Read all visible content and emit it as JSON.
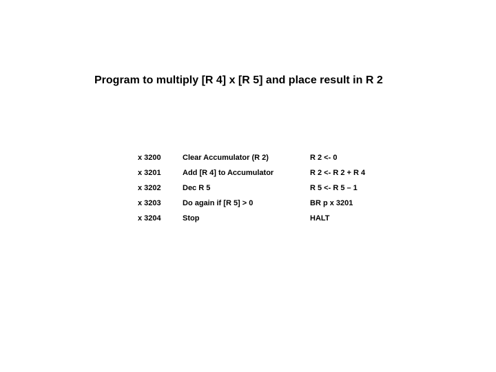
{
  "title": "Program to multiply [R 4] x [R 5] and place result in R 2",
  "table": {
    "rows": [
      {
        "addr": "x 3200",
        "desc": "Clear Accumulator (R 2)",
        "op": "R 2 <- 0"
      },
      {
        "addr": "x 3201",
        "desc": "Add [R 4] to Accumulator",
        "op": "R 2 <- R 2 + R 4"
      },
      {
        "addr": "x 3202",
        "desc": "Dec R 5",
        "op": "R 5 <- R 5 – 1"
      },
      {
        "addr": "x 3203",
        "desc": "Do again if [R 5] > 0",
        "op": "BR p x 3201"
      },
      {
        "addr": "x 3204",
        "desc": "Stop",
        "op": "HALT"
      }
    ]
  },
  "style": {
    "background_color": "#ffffff",
    "text_color": "#000000",
    "title_fontsize": 16,
    "title_fontweight": "bold",
    "cell_fontsize": 11,
    "cell_fontweight": "bold",
    "font_family": "Arial"
  }
}
